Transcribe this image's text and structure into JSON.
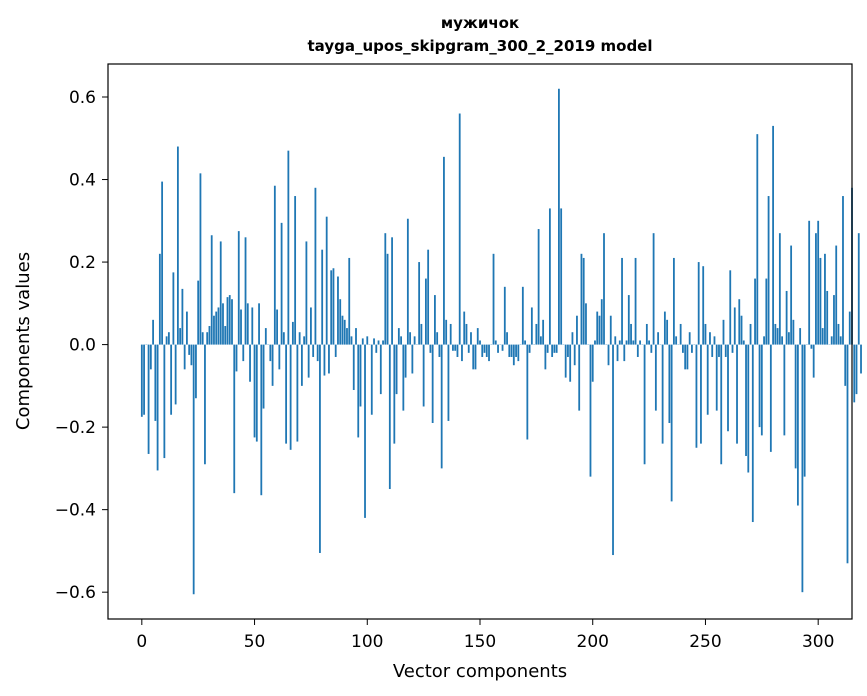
{
  "chart_data": {
    "type": "bar",
    "title": "мужичок",
    "subtitle": "tayga_upos_skipgram_300_2_2019 model",
    "xlabel": "Vector components",
    "ylabel": "Components values",
    "xlim": [
      -15,
      315
    ],
    "ylim": [
      -0.665,
      0.68
    ],
    "xticks": [
      0,
      50,
      100,
      150,
      200,
      250,
      300
    ],
    "yticks": [
      -0.6,
      -0.4,
      -0.2,
      0.0,
      0.2,
      0.4,
      0.6
    ],
    "ytick_labels": [
      "−0.6",
      "−0.4",
      "−0.2",
      "0.0",
      "0.2",
      "0.4",
      "0.6"
    ],
    "bar_color": "#1f77b4",
    "grid": false,
    "values": [
      -0.175,
      -0.17,
      0.0,
      -0.265,
      -0.06,
      0.06,
      -0.185,
      -0.305,
      0.22,
      0.395,
      -0.275,
      0.02,
      0.03,
      -0.17,
      0.175,
      -0.145,
      0.48,
      0.04,
      0.135,
      -0.06,
      0.08,
      -0.025,
      -0.05,
      -0.605,
      -0.13,
      0.155,
      0.415,
      0.03,
      -0.29,
      0.03,
      0.045,
      0.265,
      0.07,
      0.08,
      0.09,
      0.25,
      0.1,
      0.045,
      0.115,
      0.12,
      0.11,
      -0.36,
      -0.065,
      0.275,
      0.085,
      -0.04,
      0.26,
      0.1,
      -0.09,
      0.09,
      -0.225,
      -0.235,
      0.1,
      -0.365,
      -0.155,
      0.04,
      0.0,
      -0.04,
      -0.1,
      0.385,
      0.085,
      -0.06,
      0.295,
      0.03,
      -0.24,
      0.47,
      -0.255,
      0.055,
      0.36,
      -0.235,
      0.03,
      -0.1,
      0.02,
      0.25,
      -0.08,
      0.09,
      -0.03,
      0.38,
      -0.04,
      -0.505,
      0.23,
      -0.075,
      0.31,
      -0.07,
      0.18,
      0.185,
      -0.03,
      0.165,
      0.11,
      0.07,
      0.06,
      0.04,
      0.21,
      0.02,
      -0.11,
      0.04,
      -0.225,
      -0.15,
      0.015,
      -0.42,
      0.02,
      0.0,
      -0.17,
      0.015,
      -0.02,
      0.01,
      -0.12,
      0.01,
      0.27,
      0.22,
      -0.35,
      0.26,
      -0.24,
      -0.12,
      0.04,
      0.02,
      -0.16,
      -0.08,
      0.305,
      0.03,
      -0.07,
      0.02,
      0.0,
      0.2,
      0.05,
      -0.15,
      0.16,
      0.23,
      -0.02,
      -0.19,
      0.12,
      0.03,
      -0.03,
      -0.3,
      0.455,
      0.06,
      -0.185,
      0.05,
      -0.015,
      -0.015,
      -0.03,
      0.56,
      -0.04,
      0.08,
      0.05,
      -0.02,
      0.03,
      -0.06,
      -0.06,
      0.04,
      0.01,
      -0.03,
      -0.02,
      -0.03,
      -0.04,
      0.0,
      0.22,
      0.01,
      -0.02,
      0.0,
      -0.015,
      0.14,
      0.03,
      -0.03,
      -0.03,
      -0.05,
      -0.03,
      -0.04,
      0.0,
      0.14,
      0.01,
      -0.23,
      -0.02,
      0.09,
      0.0,
      0.05,
      0.28,
      0.02,
      0.06,
      -0.06,
      -0.02,
      0.33,
      -0.03,
      -0.02,
      -0.02,
      0.62,
      0.33,
      0.0,
      -0.08,
      -0.03,
      -0.09,
      0.03,
      -0.05,
      0.07,
      -0.16,
      0.22,
      0.21,
      0.1,
      0.0,
      -0.32,
      -0.09,
      0.01,
      0.08,
      0.07,
      0.11,
      0.27,
      0.0,
      -0.05,
      0.07,
      -0.51,
      0.02,
      -0.04,
      0.01,
      0.21,
      -0.04,
      0.01,
      0.12,
      0.05,
      0.01,
      0.21,
      -0.03,
      0.01,
      0.0,
      -0.29,
      0.05,
      0.01,
      -0.02,
      0.27,
      -0.16,
      0.03,
      0.0,
      -0.24,
      0.08,
      0.06,
      -0.19,
      -0.38,
      0.21,
      0.02,
      0.0,
      0.05,
      -0.02,
      -0.06,
      -0.06,
      0.03,
      -0.02,
      0.0,
      -0.25,
      0.2,
      -0.24,
      0.19,
      0.05,
      -0.17,
      0.03,
      -0.03,
      0.02,
      -0.16,
      -0.03,
      -0.29,
      0.06,
      -0.03,
      -0.21,
      0.18,
      -0.02,
      0.09,
      -0.24,
      0.11,
      0.07,
      0.01,
      -0.27,
      -0.31,
      0.05,
      -0.43,
      0.16,
      0.51,
      -0.2,
      -0.22,
      0.02,
      0.16,
      0.36,
      -0.26,
      0.53,
      0.05,
      0.04,
      0.27,
      0.02,
      -0.22,
      0.13,
      0.03,
      0.24,
      0.06,
      -0.3,
      -0.39,
      0.04,
      -0.6,
      -0.32,
      0.0,
      0.3,
      -0.01,
      -0.08,
      0.27,
      0.3,
      0.21,
      0.04,
      0.22,
      0.13,
      0.0,
      0.02,
      0.12,
      0.24,
      0.05,
      0.02,
      0.36,
      -0.1,
      -0.53,
      0.08,
      0.38,
      -0.14,
      -0.12,
      0.27,
      -0.07
    ]
  }
}
